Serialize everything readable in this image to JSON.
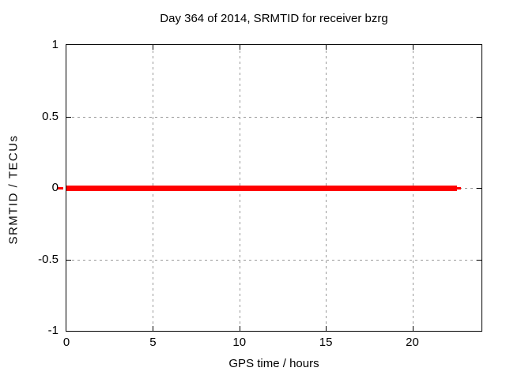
{
  "window": {
    "background": "#ffffff"
  },
  "chart_data": {
    "type": "line",
    "title": "Day 364 of 2014, SRMTID for receiver bzrg",
    "xlabel": "GPS time / hours",
    "ylabel": "SRMTID / TECUs",
    "xlim": [
      0,
      24
    ],
    "ylim": [
      -1,
      1
    ],
    "x_ticks": [
      0,
      5,
      10,
      15,
      20
    ],
    "y_ticks": [
      1,
      0.5,
      0,
      -0.5,
      -1
    ],
    "grid": true,
    "legend_position": "none",
    "colors": {
      "line": "#ff0000",
      "grid": "#999999",
      "border": "#000000",
      "text": "#000000",
      "background": "#ffffff"
    },
    "series": [
      {
        "name": "SRMTID",
        "color": "#ff0000",
        "y_constant": 0,
        "x_start": 0,
        "x_end": 22.82,
        "points": [
          [
            0,
            0
          ],
          [
            22.82,
            0
          ]
        ],
        "segments": [
          {
            "x0": -0.5,
            "x1": -0.18,
            "y": 0,
            "thickness": 3
          },
          {
            "x0": 0,
            "x1": 22.6,
            "y": 0,
            "thickness": 7
          },
          {
            "x0": 22.6,
            "x1": 22.82,
            "y": 0,
            "thickness": 3
          }
        ]
      }
    ]
  }
}
